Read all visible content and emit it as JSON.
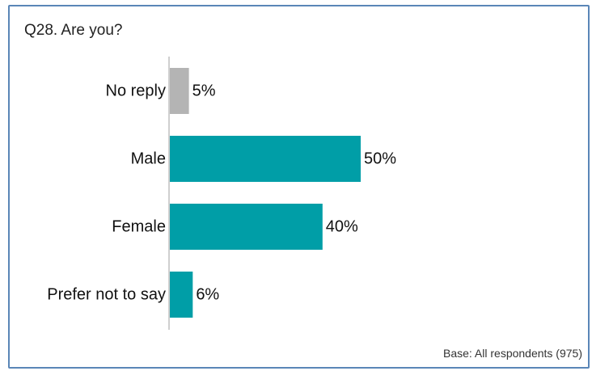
{
  "chart_data": {
    "type": "bar",
    "orientation": "horizontal",
    "title": "Q28. Are you?",
    "categories": [
      "No reply",
      "Male",
      "Female",
      "Prefer not to say"
    ],
    "values": [
      5,
      50,
      40,
      6
    ],
    "value_labels": [
      "5%",
      "50%",
      "40%",
      "6%"
    ],
    "unit": "%",
    "colors": [
      "#b4b4b4",
      "#009ea7",
      "#009ea7",
      "#009ea7"
    ],
    "axis_color": "#bfbfbf",
    "xlim": [
      0,
      100
    ],
    "grid": false,
    "legend": "none",
    "note": "Base: All respondents (975)"
  }
}
